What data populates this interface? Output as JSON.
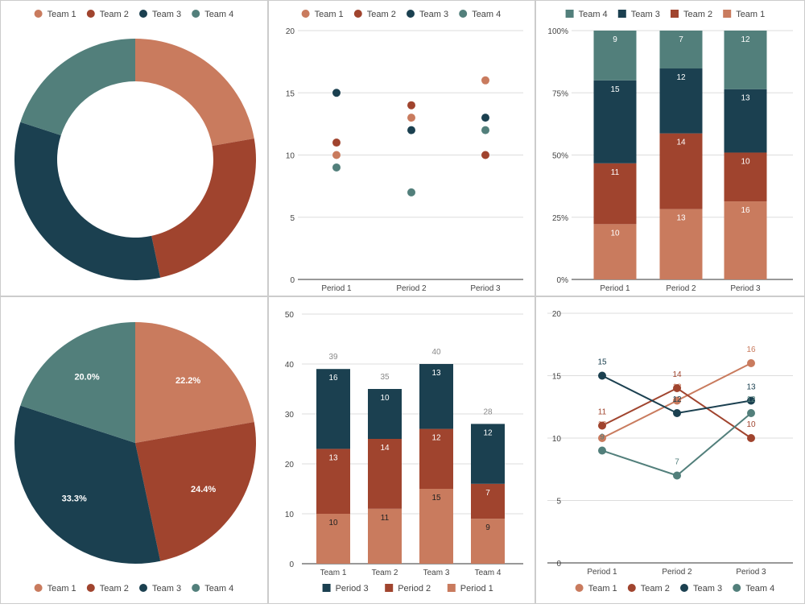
{
  "colors": {
    "team_1": "#c97b5e",
    "team_2": "#a0442e",
    "team_3": "#1b4050",
    "team_4": "#527f7b",
    "grid": "#dddddd",
    "axis_text": "#444444",
    "border": "#cccccc"
  },
  "chart_data": [
    {
      "type": "pie",
      "donut": true,
      "categories": [
        "Team 1",
        "Team 2",
        "Team 3",
        "Team 4"
      ],
      "values": [
        10,
        11,
        15,
        9
      ],
      "legend": "top"
    },
    {
      "type": "scatter",
      "categories": [
        "Period 1",
        "Period 2",
        "Period 3"
      ],
      "series": [
        {
          "name": "Team 1",
          "values": [
            10,
            13,
            16
          ]
        },
        {
          "name": "Team 2",
          "values": [
            11,
            14,
            10
          ]
        },
        {
          "name": "Team 3",
          "values": [
            15,
            12,
            13
          ]
        },
        {
          "name": "Team 4",
          "values": [
            9,
            7,
            12
          ]
        }
      ],
      "ylim": [
        0,
        20
      ],
      "yticks": [
        "0",
        "5",
        "10",
        "15",
        "20"
      ],
      "grid": true,
      "legend": "top"
    },
    {
      "type": "bar",
      "stacked": "percent",
      "categories": [
        "Period 1",
        "Period 2",
        "Period 3"
      ],
      "series": [
        {
          "name": "Team 1",
          "values": [
            10,
            13,
            16
          ]
        },
        {
          "name": "Team 2",
          "values": [
            11,
            14,
            10
          ]
        },
        {
          "name": "Team 3",
          "values": [
            15,
            12,
            13
          ]
        },
        {
          "name": "Team 4",
          "values": [
            9,
            7,
            12
          ]
        }
      ],
      "legend_order": [
        "Team 4",
        "Team 3",
        "Team 2",
        "Team 1"
      ],
      "ylim": [
        0,
        100
      ],
      "yticks": [
        "0%",
        "25%",
        "50%",
        "75%",
        "100%"
      ],
      "grid": true,
      "legend": "top"
    },
    {
      "type": "bar",
      "stacked": "normal",
      "categories": [
        "Team 1",
        "Team 2",
        "Team 3",
        "Team 4"
      ],
      "series": [
        {
          "name": "Period 1",
          "values": [
            10,
            11,
            15,
            9
          ]
        },
        {
          "name": "Period 2",
          "values": [
            13,
            14,
            12,
            7
          ]
        },
        {
          "name": "Period 3",
          "values": [
            16,
            10,
            13,
            12
          ]
        }
      ],
      "totals": [
        39,
        35,
        40,
        28
      ],
      "legend_order": [
        "Period 3",
        "Period 2",
        "Period 1"
      ],
      "ylim": [
        0,
        50
      ],
      "yticks": [
        "0",
        "10",
        "20",
        "30",
        "40",
        "50"
      ],
      "grid": true,
      "legend": "bottom"
    },
    {
      "type": "line",
      "categories": [
        "Period 1",
        "Period 2",
        "Period 3"
      ],
      "series": [
        {
          "name": "Team 1",
          "values": [
            10,
            13,
            16
          ]
        },
        {
          "name": "Team 2",
          "values": [
            11,
            14,
            10
          ]
        },
        {
          "name": "Team 3",
          "values": [
            15,
            12,
            13
          ]
        },
        {
          "name": "Team 4",
          "values": [
            9,
            7,
            12
          ]
        }
      ],
      "ylim": [
        0,
        20
      ],
      "yticks": [
        "0",
        "5",
        "10",
        "15",
        "20"
      ],
      "grid": true,
      "legend": "bottom"
    },
    {
      "type": "pie",
      "donut": false,
      "categories": [
        "Team 1",
        "Team 2",
        "Team 3",
        "Team 4"
      ],
      "values": [
        10,
        11,
        15,
        9
      ],
      "labels": [
        "22.2%",
        "24.4%",
        "33.3%",
        "20.0%"
      ],
      "legend": "bottom"
    }
  ]
}
